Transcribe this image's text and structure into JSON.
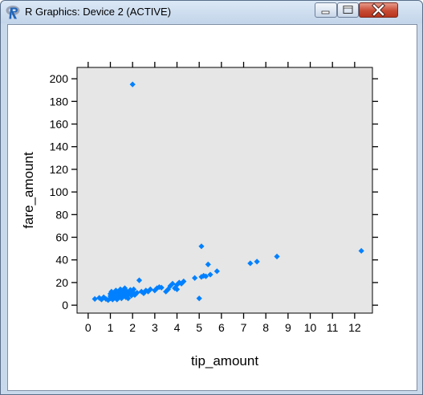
{
  "window": {
    "title": "R Graphics: Device 2 (ACTIVE)",
    "app_icon": "r-logo-icon",
    "controls": [
      "minimize-icon",
      "maximize-icon",
      "close-icon"
    ]
  },
  "colors": {
    "panel_bg": "#e6e6e6",
    "point": "#0080ff",
    "axis": "#000000",
    "close_button": "#c74a33"
  },
  "chart_data": {
    "type": "scatter",
    "xlabel": "tip_amount",
    "ylabel": "fare_amount",
    "xlim": [
      -0.5,
      12.8
    ],
    "ylim": [
      -7,
      210
    ],
    "xticks": [
      0,
      1,
      2,
      3,
      4,
      5,
      6,
      7,
      8,
      9,
      10,
      11,
      12
    ],
    "yticks": [
      0,
      20,
      40,
      60,
      80,
      100,
      120,
      140,
      160,
      180,
      200
    ],
    "grid": false,
    "marker": "diamond",
    "points": [
      [
        0.3,
        5.5
      ],
      [
        0.5,
        6.5
      ],
      [
        0.6,
        5
      ],
      [
        0.7,
        7
      ],
      [
        0.8,
        5.5
      ],
      [
        0.9,
        4.5
      ],
      [
        1.0,
        6
      ],
      [
        1.0,
        8
      ],
      [
        1.0,
        10
      ],
      [
        1.05,
        12
      ],
      [
        1.1,
        5
      ],
      [
        1.1,
        9
      ],
      [
        1.15,
        7
      ],
      [
        1.2,
        6.5
      ],
      [
        1.2,
        11
      ],
      [
        1.25,
        13
      ],
      [
        1.3,
        8
      ],
      [
        1.3,
        5
      ],
      [
        1.35,
        10
      ],
      [
        1.4,
        7.5
      ],
      [
        1.4,
        12
      ],
      [
        1.45,
        14
      ],
      [
        1.5,
        6
      ],
      [
        1.5,
        9.5
      ],
      [
        1.55,
        11.5
      ],
      [
        1.6,
        8
      ],
      [
        1.6,
        13
      ],
      [
        1.65,
        15
      ],
      [
        1.7,
        7
      ],
      [
        1.7,
        10
      ],
      [
        1.75,
        12
      ],
      [
        1.8,
        9
      ],
      [
        1.8,
        6
      ],
      [
        1.85,
        11
      ],
      [
        1.9,
        13.5
      ],
      [
        1.95,
        8.5
      ],
      [
        2.0,
        10
      ],
      [
        2.0,
        12
      ],
      [
        2.0,
        195
      ],
      [
        2.05,
        14
      ],
      [
        2.1,
        9
      ],
      [
        2.2,
        11
      ],
      [
        2.3,
        22
      ],
      [
        2.4,
        12
      ],
      [
        2.5,
        10.5
      ],
      [
        2.6,
        13
      ],
      [
        2.7,
        12
      ],
      [
        2.8,
        14
      ],
      [
        3.0,
        13
      ],
      [
        3.1,
        15
      ],
      [
        3.2,
        16
      ],
      [
        3.3,
        15.5
      ],
      [
        3.5,
        12
      ],
      [
        3.6,
        14
      ],
      [
        3.7,
        17
      ],
      [
        3.8,
        19
      ],
      [
        3.9,
        15
      ],
      [
        4.0,
        18
      ],
      [
        4.0,
        14
      ],
      [
        4.1,
        20
      ],
      [
        4.2,
        19
      ],
      [
        4.3,
        21
      ],
      [
        4.8,
        24
      ],
      [
        5.0,
        6
      ],
      [
        5.1,
        52
      ],
      [
        5.1,
        25
      ],
      [
        5.2,
        26
      ],
      [
        5.3,
        25.5
      ],
      [
        5.4,
        36
      ],
      [
        5.5,
        27
      ],
      [
        5.8,
        30
      ],
      [
        7.3,
        37
      ],
      [
        7.6,
        38.5
      ],
      [
        8.5,
        43
      ],
      [
        12.3,
        48
      ]
    ]
  }
}
